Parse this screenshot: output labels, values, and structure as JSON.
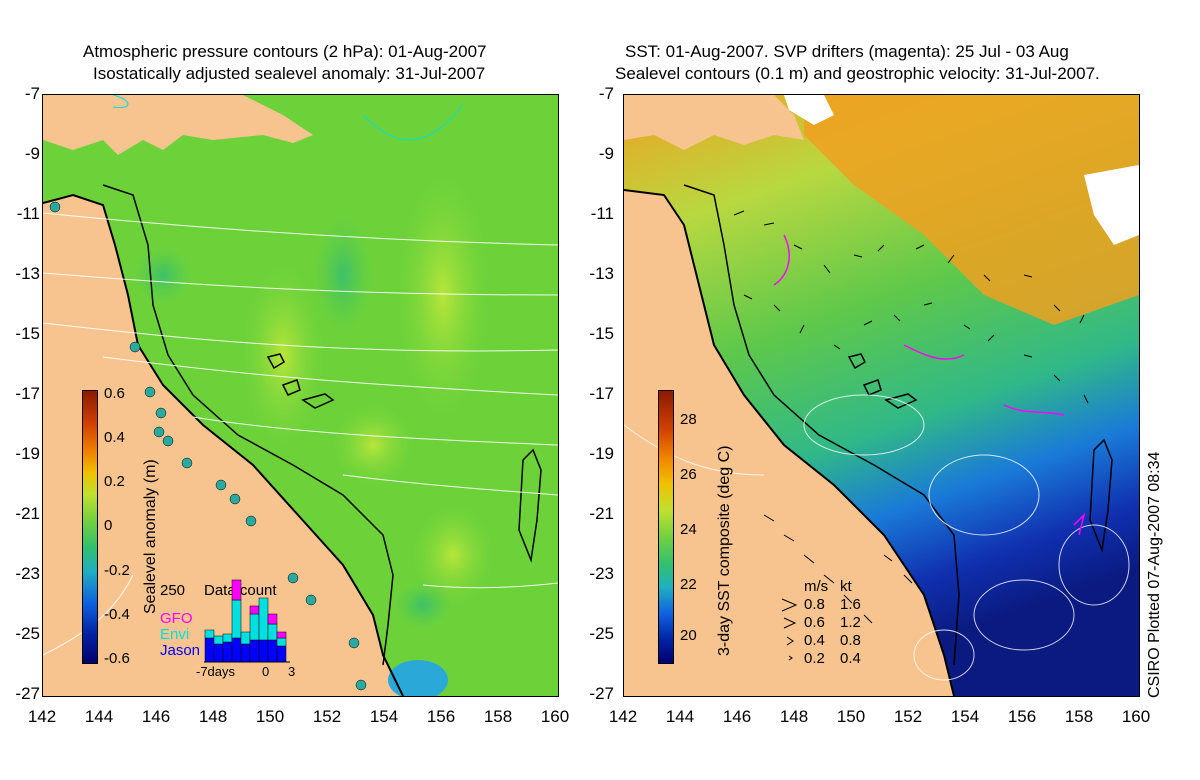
{
  "left_panel": {
    "title_line1": "Atmospheric pressure contours (2 hPa): 01-Aug-2007",
    "title_line2": "Isostatically adjusted sealevel anomaly: 31-Jul-2007",
    "colorbar": {
      "label": "Sealevel anomaly (m)",
      "ticks": [
        "0.6",
        "0.4",
        "0.2",
        "0",
        "-0.2",
        "-0.4",
        "-0.6"
      ]
    },
    "inset": {
      "max_label": "250",
      "title": "Data count",
      "series": [
        "GFO",
        "Envi",
        "Jason"
      ],
      "series_colors": [
        "#ff00ff",
        "#00e0e0",
        "#0000ff"
      ],
      "x_labels": [
        "-7days",
        "0",
        "3"
      ]
    }
  },
  "right_panel": {
    "title_line1": "SST: 01-Aug-2007. SVP drifters (magenta): 25 Jul - 03 Aug",
    "title_line2": "Sealevel contours (0.1 m) and geostrophic velocity: 31-Jul-2007.",
    "colorbar": {
      "label": "3-day SST composite (deg C)",
      "ticks": [
        "28",
        "26",
        "24",
        "22",
        "20"
      ]
    },
    "velocity_legend": {
      "header_ms": "m/s",
      "header_kt": "kt",
      "rows": [
        {
          "ms": "0.8",
          "kt": "1.6"
        },
        {
          "ms": "0.6",
          "kt": "1.2"
        },
        {
          "ms": "0.4",
          "kt": "0.8"
        },
        {
          "ms": "0.2",
          "kt": "0.4"
        }
      ]
    },
    "credit": "CSIRO Plotted 07-Aug-2007 08:34"
  },
  "axes": {
    "lat_ticks": [
      "-7",
      "-9",
      "-11",
      "-13",
      "-15",
      "-17",
      "-19",
      "-21",
      "-23",
      "-25",
      "-27"
    ],
    "lon_ticks": [
      "142",
      "144",
      "146",
      "148",
      "150",
      "152",
      "154",
      "156",
      "158",
      "160"
    ]
  }
}
